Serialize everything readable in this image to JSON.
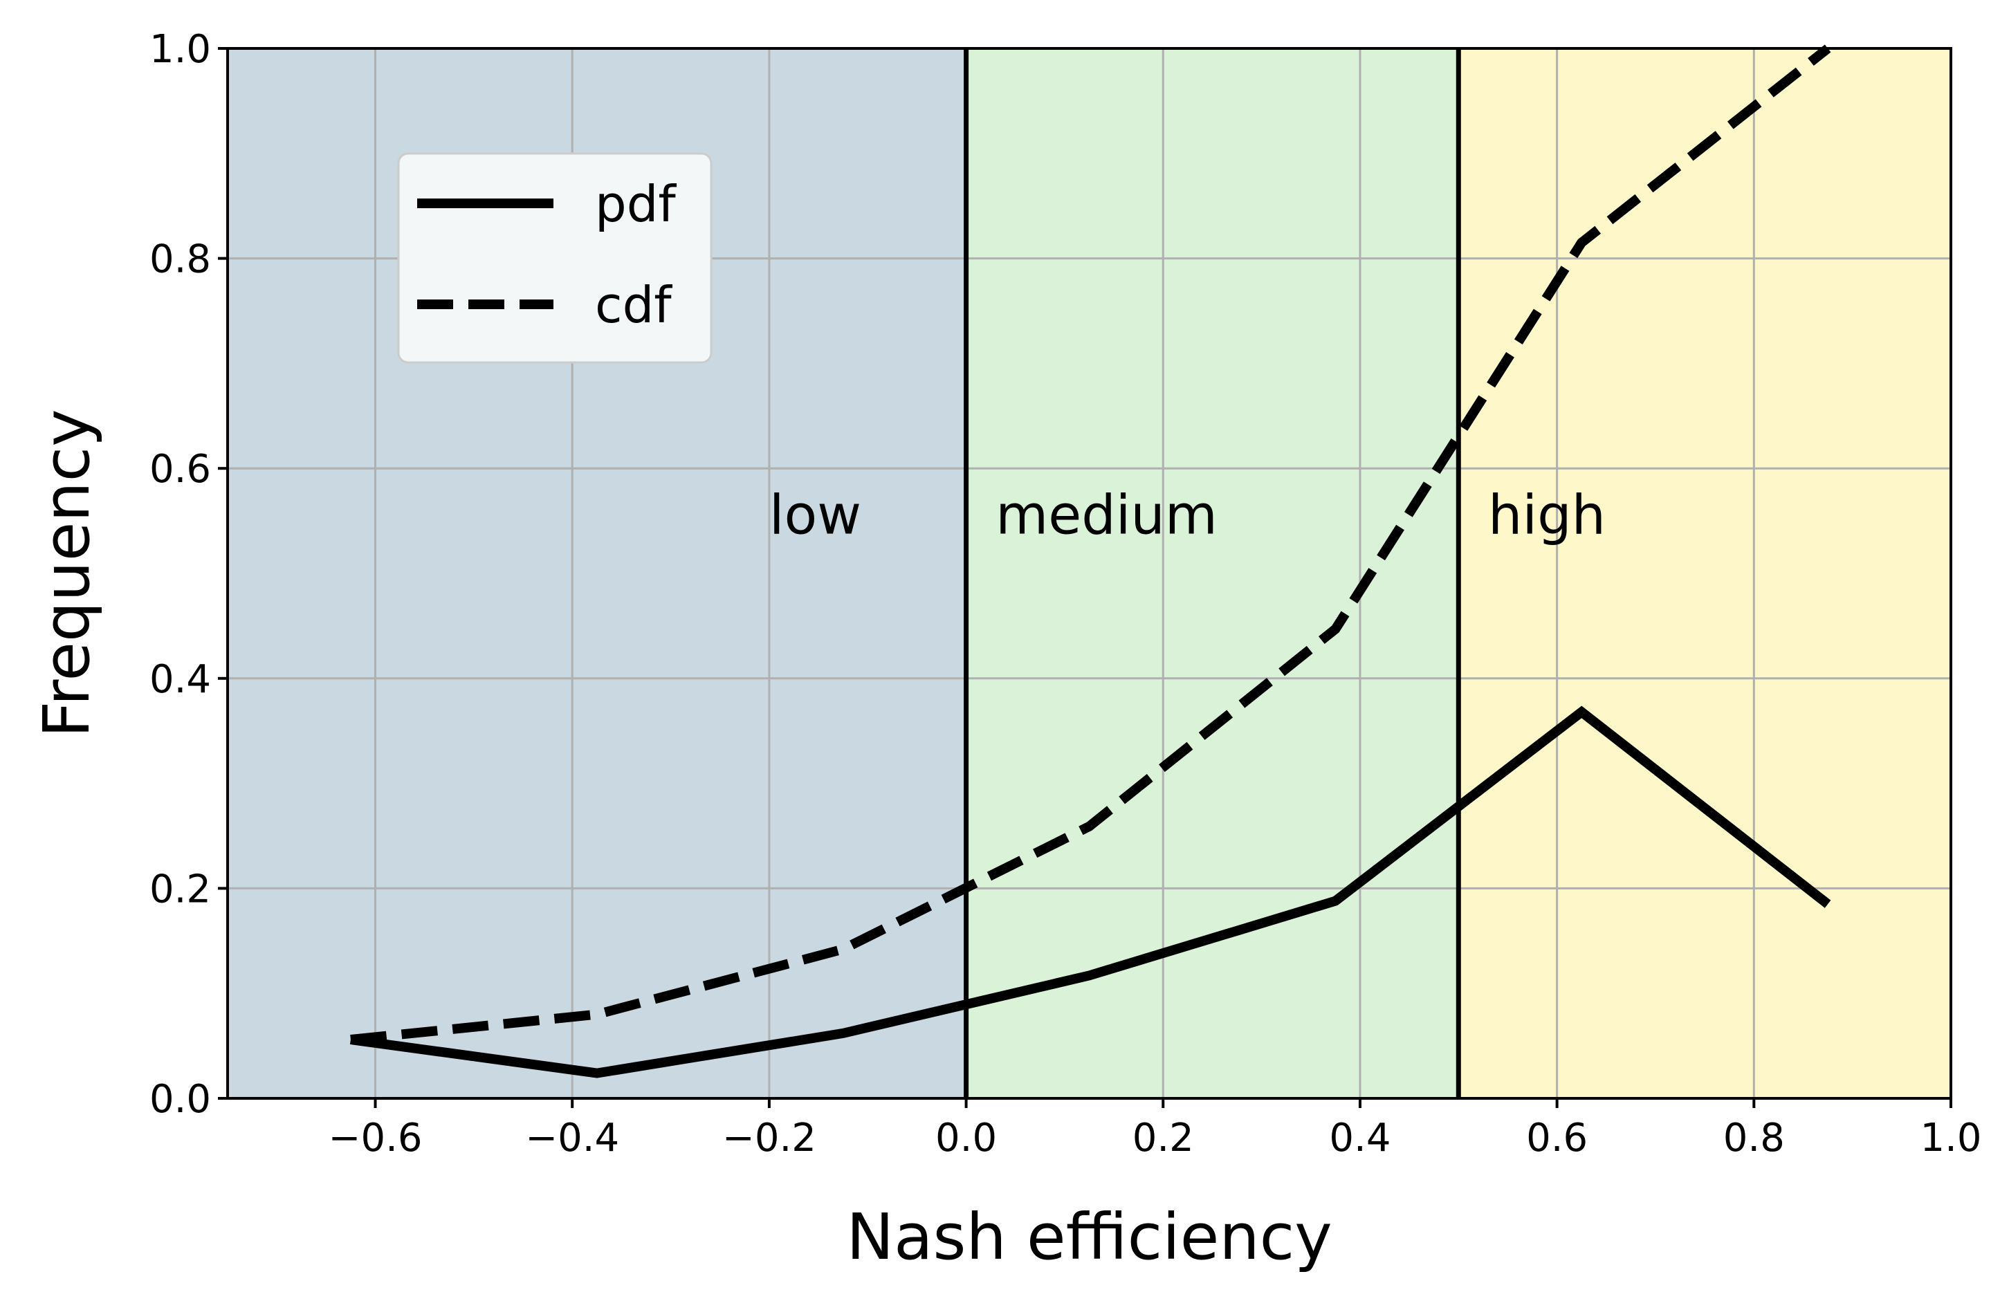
{
  "chart_data": {
    "type": "line",
    "xlabel": "Nash efficiency",
    "ylabel": "Frequency",
    "xlim": [
      -0.75,
      1.0
    ],
    "ylim": [
      0.0,
      1.0
    ],
    "grid": true,
    "legend_position": "upper-left",
    "xticks": [
      -0.6,
      -0.4,
      -0.2,
      0.0,
      0.2,
      0.4,
      0.6,
      0.8,
      1.0
    ],
    "xtick_labels": [
      "−0.6",
      "−0.4",
      "−0.2",
      "0.0",
      "0.2",
      "0.4",
      "0.6",
      "0.8",
      "1.0"
    ],
    "yticks": [
      0.0,
      0.2,
      0.4,
      0.6,
      0.8,
      1.0
    ],
    "ytick_labels": [
      "0.0",
      "0.2",
      "0.4",
      "0.6",
      "0.8",
      "1.0"
    ],
    "regions": [
      {
        "label": "low",
        "x0": -0.75,
        "x1": 0.0,
        "color": "#c9d8e1"
      },
      {
        "label": "medium",
        "x0": 0.0,
        "x1": 0.5,
        "color": "#daf2d7"
      },
      {
        "label": "high",
        "x0": 0.5,
        "x1": 1.0,
        "color": "#fdf7ca"
      }
    ],
    "region_label_y": 0.555,
    "boundaries": [
      0.0,
      0.5
    ],
    "series": [
      {
        "name": "pdf",
        "style": "solid",
        "x": [
          -0.625,
          -0.375,
          -0.125,
          0.125,
          0.375,
          0.625,
          0.875
        ],
        "y": [
          0.056,
          0.024,
          0.062,
          0.117,
          0.188,
          0.368,
          0.185
        ]
      },
      {
        "name": "cdf",
        "style": "dashed",
        "x": [
          -0.625,
          -0.375,
          -0.125,
          0.125,
          0.375,
          0.625,
          0.875
        ],
        "y": [
          0.056,
          0.08,
          0.142,
          0.259,
          0.447,
          0.815,
          1.0
        ]
      }
    ]
  }
}
